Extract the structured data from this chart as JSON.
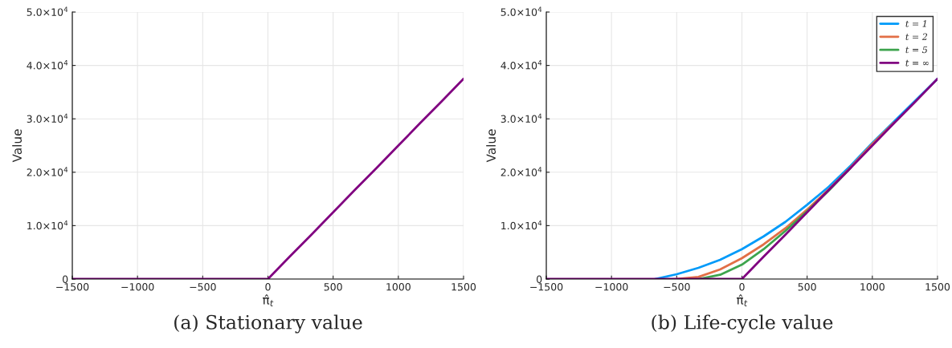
{
  "chart_data": [
    {
      "type": "line",
      "xlabel": "π̂$_{t}$",
      "ylabel": "Value",
      "annotations": [
        "(a) Stationary value"
      ],
      "x": [
        -1500,
        -1333,
        -1167,
        -1000,
        -833,
        -667,
        -500,
        -333,
        -167,
        0,
        167,
        333,
        500,
        667,
        833,
        1000,
        1167,
        1333,
        1500
      ],
      "series": [
        {
          "color": "#800080",
          "values": [
            0,
            0,
            0,
            0,
            0,
            0,
            0,
            0,
            0,
            0,
            4200,
            8300,
            12500,
            16700,
            20800,
            25000,
            29200,
            33300,
            37500
          ]
        }
      ],
      "xlim": [
        -1500,
        1500
      ],
      "xticks": [
        {
          "value": -1500,
          "label": "−1500"
        },
        {
          "value": -1000,
          "label": "−1000"
        },
        {
          "value": -500,
          "label": "−500"
        },
        0,
        500,
        1000,
        1500
      ],
      "ylim": [
        0,
        50000
      ],
      "yticks": [
        0,
        {
          "value": 10000,
          "label": "1.0×10$^{4}$"
        },
        {
          "value": 20000,
          "label": "2.0×10$^{4}$"
        },
        {
          "value": 30000,
          "label": "3.0×10$^{4}$"
        },
        {
          "value": 40000,
          "label": "4.0×10$^{4}$"
        },
        {
          "value": 50000,
          "label": "5.0×10$^{4}$"
        }
      ],
      "grid": true,
      "legend": false
    },
    {
      "type": "line",
      "xlabel": "π̂$_{t}$",
      "ylabel": "Value",
      "annotations": [
        "(b) Life-cycle value"
      ],
      "x": [
        -1500,
        -1333,
        -1167,
        -1000,
        -833,
        -667,
        -500,
        -333,
        -167,
        0,
        167,
        333,
        500,
        667,
        833,
        1000,
        1167,
        1333,
        1500
      ],
      "series": [
        {
          "name": "t = 1",
          "color": "#009af9",
          "values": [
            null,
            null,
            null,
            null,
            null,
            0,
            900,
            2100,
            3600,
            5600,
            8000,
            10700,
            13900,
            17300,
            21200,
            25500,
            29500,
            33500,
            37500
          ]
        },
        {
          "name": "t = 2",
          "color": "#e26f46",
          "values": [
            null,
            null,
            null,
            null,
            null,
            null,
            0,
            400,
            1800,
            3900,
            6500,
            9500,
            13000,
            16800,
            20900,
            25300,
            29300,
            null,
            null
          ]
        },
        {
          "name": "t = 5",
          "color": "#3da44d",
          "values": [
            null,
            null,
            null,
            null,
            null,
            null,
            null,
            0,
            800,
            2700,
            5600,
            9000,
            12700,
            16600,
            20800,
            null,
            null,
            null,
            null
          ]
        },
        {
          "name": "t = ∞",
          "color": "#800080",
          "values": [
            0,
            0,
            0,
            0,
            0,
            0,
            0,
            0,
            0,
            0,
            4200,
            8300,
            12500,
            16700,
            20800,
            25000,
            29200,
            33300,
            37500
          ]
        }
      ],
      "xlim": [
        -1500,
        1500
      ],
      "xticks": [
        {
          "value": -1500,
          "label": "−1500"
        },
        {
          "value": -1000,
          "label": "−1000"
        },
        {
          "value": -500,
          "label": "−500"
        },
        0,
        500,
        1000,
        1500
      ],
      "ylim": [
        0,
        50000
      ],
      "yticks": [
        0,
        {
          "value": 10000,
          "label": "1.0×10$^{4}$"
        },
        {
          "value": 20000,
          "label": "2.0×10$^{4}$"
        },
        {
          "value": 30000,
          "label": "3.0×10$^{4}$"
        },
        {
          "value": 40000,
          "label": "4.0×10$^{4}$"
        },
        {
          "value": 50000,
          "label": "5.0×10$^{4}$"
        }
      ],
      "grid": true,
      "legend": "top right"
    }
  ]
}
